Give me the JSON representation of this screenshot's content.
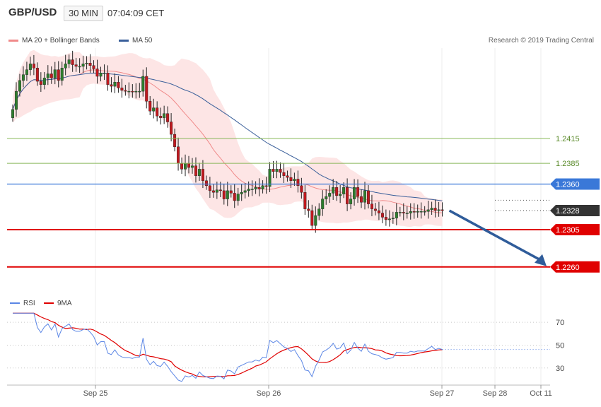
{
  "header": {
    "symbol": "GBP/USD",
    "timeframe": "30 MIN",
    "time": "07:04:09 CET"
  },
  "legend": {
    "ma20_label": "MA 20 + Bollinger Bands",
    "ma50_label": "MA 50",
    "copyright": "Research © 2019 Trading Central"
  },
  "colors": {
    "candle_up": "#2d7d2d",
    "candle_down": "#c0181e",
    "ma20": "#f08a8a",
    "ma50": "#3a5f9a",
    "bands_fill": "#fde0e0",
    "support": "#e00000",
    "resistance_green": "#88b85a",
    "pivot_blue": "#3a78d8",
    "arrow": "#2f5c9a",
    "rsi": "#5b86e5",
    "rsi_ma": "#e00000"
  },
  "chart_data": [
    {
      "type": "line",
      "title": "GBP/USD 30 MIN",
      "x_ticks": [
        "Sep 25",
        "Sep 26",
        "Sep 27",
        "Sep 28",
        "Oct 11"
      ],
      "y_range": [
        1.2224,
        1.2519
      ],
      "series": [
        {
          "name": "MA 20 + Bollinger Bands"
        },
        {
          "name": "MA 50"
        }
      ],
      "levels": [
        {
          "value": 1.2415,
          "label": "1.2415",
          "style": "resistance"
        },
        {
          "value": 1.2385,
          "label": "1.2385",
          "style": "resistance"
        },
        {
          "value": 1.236,
          "label": "1.2360",
          "style": "pivot"
        },
        {
          "value": 1.2328,
          "label": "1.2328",
          "style": "current"
        },
        {
          "value": 1.2305,
          "label": "1.2305",
          "style": "support"
        },
        {
          "value": 1.226,
          "label": "1.2260",
          "style": "support"
        }
      ],
      "forecast_arrow": {
        "from": 1.2328,
        "to": 1.226,
        "direction": "down"
      },
      "closes": [
        1.245,
        1.2472,
        1.2485,
        1.2492,
        1.2498,
        1.2505,
        1.25,
        1.2484,
        1.248,
        1.2488,
        1.2493,
        1.2488,
        1.2498,
        1.2485,
        1.25,
        1.2505,
        1.251,
        1.2504,
        1.2502,
        1.2502,
        1.2505,
        1.2506,
        1.2503,
        1.2499,
        1.249,
        1.2494,
        1.2494,
        1.248,
        1.2478,
        1.2483,
        1.2476,
        1.2473,
        1.2472,
        1.2472,
        1.2471,
        1.2472,
        1.2472,
        1.249,
        1.246,
        1.2448,
        1.2452,
        1.2442,
        1.244,
        1.2445,
        1.2435,
        1.242,
        1.2405,
        1.2385,
        1.2378,
        1.2385,
        1.238,
        1.2382,
        1.237,
        1.2378,
        1.2364,
        1.2358,
        1.2352,
        1.235,
        1.2353,
        1.2352,
        1.2342,
        1.2352,
        1.2349,
        1.234,
        1.2348,
        1.235,
        1.2352,
        1.2354,
        1.2354,
        1.2356,
        1.2354,
        1.2358,
        1.2357,
        1.2378,
        1.2375,
        1.2378,
        1.2374,
        1.237,
        1.2368,
        1.2364,
        1.2366,
        1.2358,
        1.235,
        1.233,
        1.2328,
        1.231,
        1.2322,
        1.233,
        1.2342,
        1.2345,
        1.2349,
        1.2356,
        1.2346,
        1.2348,
        1.2356,
        1.2336,
        1.2342,
        1.2356,
        1.2345,
        1.2338,
        1.2352,
        1.2336,
        1.233,
        1.2328,
        1.2325,
        1.232,
        1.2317,
        1.2318,
        1.2319,
        1.2326,
        1.2326,
        1.2325,
        1.2325,
        1.2327,
        1.2326,
        1.2327,
        1.2327,
        1.2327,
        1.2329,
        1.2331,
        1.2328,
        1.2329,
        1.2328
      ]
    },
    {
      "type": "line",
      "title": "RSI",
      "y_range": [
        15,
        80
      ],
      "y_ticks": [
        70,
        50,
        30
      ],
      "series": [
        {
          "name": "RSI"
        },
        {
          "name": "9MA"
        }
      ]
    }
  ]
}
